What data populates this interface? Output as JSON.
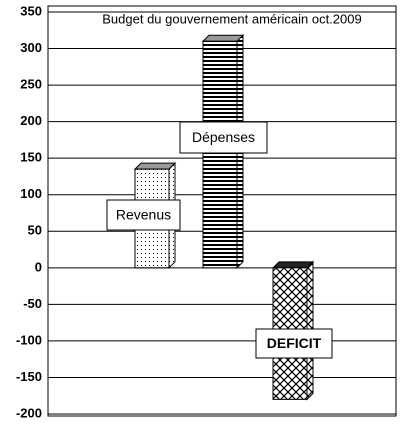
{
  "chart_data": {
    "type": "bar",
    "title": "Budget du gouvernement américain oct.2009",
    "categories": [
      "Revenus",
      "Dépenses",
      "DEFICIT"
    ],
    "values": [
      135,
      310,
      -180
    ],
    "ylim": [
      -200,
      350
    ],
    "yticks": [
      -200,
      -150,
      -100,
      -50,
      0,
      50,
      100,
      150,
      200,
      250,
      300,
      350
    ],
    "grid": true
  }
}
